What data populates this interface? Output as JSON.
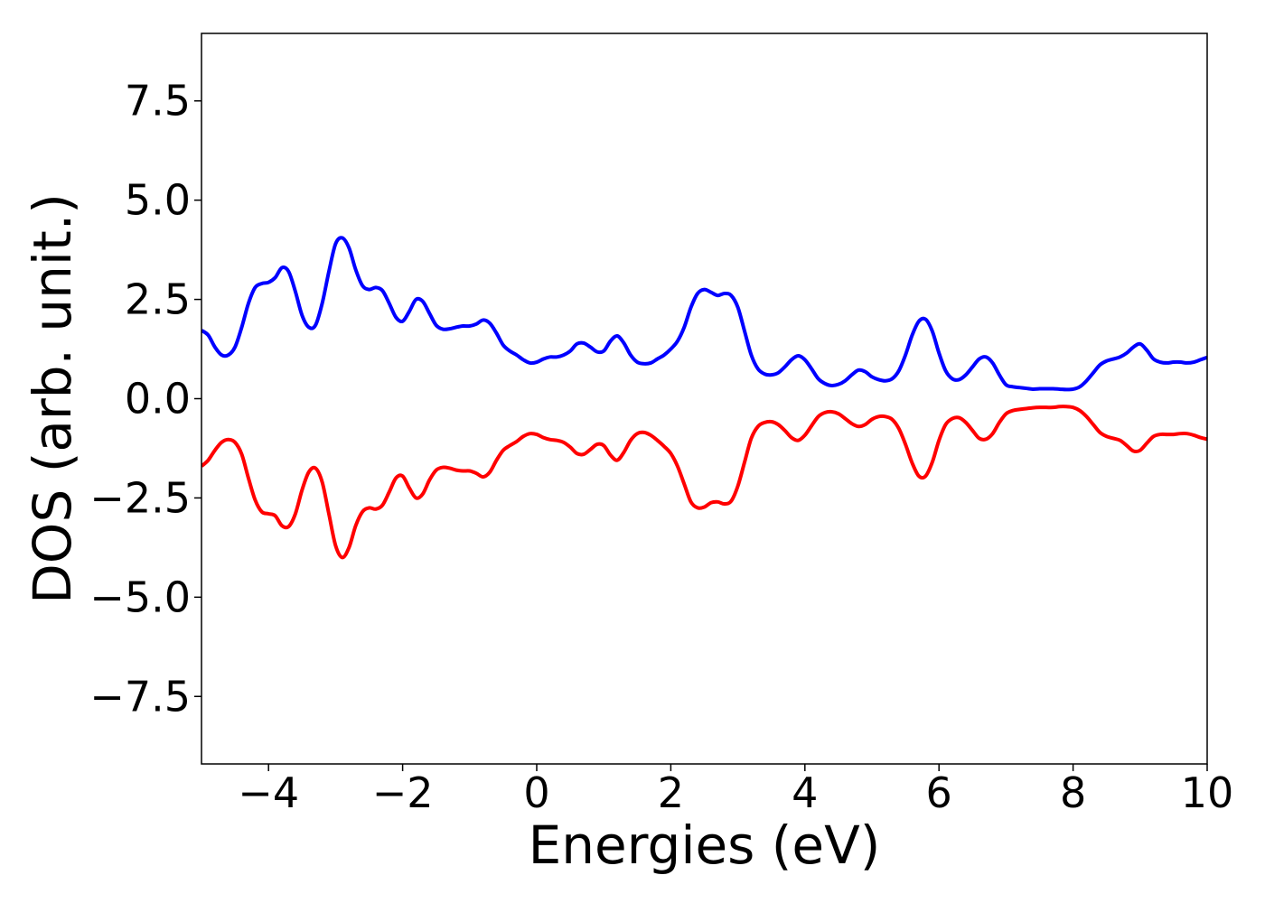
{
  "chart_data": {
    "type": "line",
    "title": "",
    "xlabel": "Energies (eV)",
    "ylabel": "DOS (arb. unit.)",
    "xlim": [
      -5,
      10
    ],
    "ylim": [
      -9.2,
      9.2
    ],
    "grid": false,
    "legend": "none",
    "x_ticks": [
      -4,
      -2,
      0,
      2,
      4,
      6,
      8,
      10
    ],
    "x_tick_labels": [
      "−4",
      "−2",
      "0",
      "2",
      "4",
      "6",
      "8",
      "10"
    ],
    "y_ticks": [
      -7.5,
      -5.0,
      -2.5,
      0.0,
      2.5,
      5.0,
      7.5
    ],
    "y_tick_labels": [
      "−7.5",
      "−5.0",
      "−2.5",
      "0.0",
      "2.5",
      "5.0",
      "7.5"
    ],
    "series": [
      {
        "color": "#0000ff",
        "points": [
          [
            -5.0,
            1.72
          ],
          [
            -4.9,
            1.6
          ],
          [
            -4.8,
            1.3
          ],
          [
            -4.7,
            1.1
          ],
          [
            -4.6,
            1.1
          ],
          [
            -4.5,
            1.3
          ],
          [
            -4.4,
            1.8
          ],
          [
            -4.3,
            2.4
          ],
          [
            -4.2,
            2.8
          ],
          [
            -4.1,
            2.9
          ],
          [
            -4.0,
            2.93
          ],
          [
            -3.9,
            3.05
          ],
          [
            -3.8,
            3.3
          ],
          [
            -3.7,
            3.2
          ],
          [
            -3.6,
            2.7
          ],
          [
            -3.5,
            2.1
          ],
          [
            -3.4,
            1.8
          ],
          [
            -3.3,
            1.85
          ],
          [
            -3.2,
            2.4
          ],
          [
            -3.1,
            3.2
          ],
          [
            -3.0,
            3.9
          ],
          [
            -2.9,
            4.05
          ],
          [
            -2.8,
            3.8
          ],
          [
            -2.7,
            3.25
          ],
          [
            -2.6,
            2.85
          ],
          [
            -2.5,
            2.75
          ],
          [
            -2.4,
            2.8
          ],
          [
            -2.3,
            2.72
          ],
          [
            -2.2,
            2.4
          ],
          [
            -2.1,
            2.05
          ],
          [
            -2.0,
            1.95
          ],
          [
            -1.9,
            2.2
          ],
          [
            -1.8,
            2.5
          ],
          [
            -1.7,
            2.45
          ],
          [
            -1.6,
            2.15
          ],
          [
            -1.5,
            1.85
          ],
          [
            -1.4,
            1.75
          ],
          [
            -1.3,
            1.76
          ],
          [
            -1.2,
            1.8
          ],
          [
            -1.1,
            1.83
          ],
          [
            -1.0,
            1.83
          ],
          [
            -0.9,
            1.88
          ],
          [
            -0.8,
            1.98
          ],
          [
            -0.7,
            1.9
          ],
          [
            -0.6,
            1.65
          ],
          [
            -0.5,
            1.35
          ],
          [
            -0.4,
            1.2
          ],
          [
            -0.3,
            1.1
          ],
          [
            -0.2,
            0.98
          ],
          [
            -0.1,
            0.9
          ],
          [
            0.0,
            0.92
          ],
          [
            0.1,
            1.0
          ],
          [
            0.2,
            1.05
          ],
          [
            0.3,
            1.05
          ],
          [
            0.4,
            1.1
          ],
          [
            0.5,
            1.2
          ],
          [
            0.6,
            1.38
          ],
          [
            0.7,
            1.4
          ],
          [
            0.8,
            1.3
          ],
          [
            0.9,
            1.18
          ],
          [
            1.0,
            1.2
          ],
          [
            1.1,
            1.45
          ],
          [
            1.2,
            1.58
          ],
          [
            1.3,
            1.4
          ],
          [
            1.4,
            1.1
          ],
          [
            1.5,
            0.92
          ],
          [
            1.6,
            0.88
          ],
          [
            1.7,
            0.9
          ],
          [
            1.8,
            1.0
          ],
          [
            1.9,
            1.1
          ],
          [
            2.0,
            1.25
          ],
          [
            2.1,
            1.45
          ],
          [
            2.2,
            1.8
          ],
          [
            2.3,
            2.3
          ],
          [
            2.4,
            2.65
          ],
          [
            2.5,
            2.75
          ],
          [
            2.6,
            2.68
          ],
          [
            2.7,
            2.6
          ],
          [
            2.8,
            2.65
          ],
          [
            2.9,
            2.6
          ],
          [
            3.0,
            2.3
          ],
          [
            3.1,
            1.7
          ],
          [
            3.2,
            1.1
          ],
          [
            3.3,
            0.75
          ],
          [
            3.4,
            0.62
          ],
          [
            3.5,
            0.6
          ],
          [
            3.6,
            0.65
          ],
          [
            3.7,
            0.8
          ],
          [
            3.8,
            0.98
          ],
          [
            3.9,
            1.08
          ],
          [
            4.0,
            0.98
          ],
          [
            4.1,
            0.75
          ],
          [
            4.2,
            0.5
          ],
          [
            4.3,
            0.38
          ],
          [
            4.4,
            0.33
          ],
          [
            4.5,
            0.36
          ],
          [
            4.6,
            0.45
          ],
          [
            4.7,
            0.6
          ],
          [
            4.8,
            0.72
          ],
          [
            4.9,
            0.68
          ],
          [
            5.0,
            0.55
          ],
          [
            5.1,
            0.48
          ],
          [
            5.2,
            0.45
          ],
          [
            5.3,
            0.5
          ],
          [
            5.4,
            0.7
          ],
          [
            5.5,
            1.1
          ],
          [
            5.6,
            1.6
          ],
          [
            5.7,
            1.95
          ],
          [
            5.8,
            2.0
          ],
          [
            5.9,
            1.7
          ],
          [
            6.0,
            1.15
          ],
          [
            6.1,
            0.7
          ],
          [
            6.2,
            0.5
          ],
          [
            6.3,
            0.48
          ],
          [
            6.4,
            0.6
          ],
          [
            6.5,
            0.8
          ],
          [
            6.6,
            1.0
          ],
          [
            6.7,
            1.05
          ],
          [
            6.8,
            0.9
          ],
          [
            6.9,
            0.6
          ],
          [
            7.0,
            0.35
          ],
          [
            7.1,
            0.3
          ],
          [
            7.2,
            0.28
          ],
          [
            7.3,
            0.26
          ],
          [
            7.4,
            0.24
          ],
          [
            7.5,
            0.25
          ],
          [
            7.6,
            0.25
          ],
          [
            7.7,
            0.25
          ],
          [
            7.8,
            0.24
          ],
          [
            7.9,
            0.23
          ],
          [
            8.0,
            0.24
          ],
          [
            8.1,
            0.3
          ],
          [
            8.2,
            0.45
          ],
          [
            8.3,
            0.65
          ],
          [
            8.4,
            0.85
          ],
          [
            8.5,
            0.95
          ],
          [
            8.6,
            1.0
          ],
          [
            8.7,
            1.05
          ],
          [
            8.8,
            1.15
          ],
          [
            8.9,
            1.3
          ],
          [
            9.0,
            1.38
          ],
          [
            9.1,
            1.22
          ],
          [
            9.2,
            1.0
          ],
          [
            9.3,
            0.92
          ],
          [
            9.4,
            0.9
          ],
          [
            9.5,
            0.92
          ],
          [
            9.6,
            0.92
          ],
          [
            9.7,
            0.9
          ],
          [
            9.8,
            0.92
          ],
          [
            9.9,
            0.98
          ],
          [
            10.0,
            1.04
          ]
        ]
      },
      {
        "color": "#ff0000",
        "points": [
          [
            -5.0,
            -1.7
          ],
          [
            -4.9,
            -1.55
          ],
          [
            -4.8,
            -1.3
          ],
          [
            -4.7,
            -1.1
          ],
          [
            -4.6,
            -1.03
          ],
          [
            -4.5,
            -1.1
          ],
          [
            -4.4,
            -1.4
          ],
          [
            -4.3,
            -2.0
          ],
          [
            -4.2,
            -2.55
          ],
          [
            -4.1,
            -2.85
          ],
          [
            -4.0,
            -2.9
          ],
          [
            -3.9,
            -2.95
          ],
          [
            -3.8,
            -3.2
          ],
          [
            -3.7,
            -3.22
          ],
          [
            -3.6,
            -2.9
          ],
          [
            -3.5,
            -2.3
          ],
          [
            -3.4,
            -1.85
          ],
          [
            -3.3,
            -1.75
          ],
          [
            -3.2,
            -2.1
          ],
          [
            -3.1,
            -2.9
          ],
          [
            -3.0,
            -3.7
          ],
          [
            -2.9,
            -4.0
          ],
          [
            -2.8,
            -3.75
          ],
          [
            -2.7,
            -3.2
          ],
          [
            -2.6,
            -2.85
          ],
          [
            -2.5,
            -2.75
          ],
          [
            -2.4,
            -2.78
          ],
          [
            -2.3,
            -2.68
          ],
          [
            -2.2,
            -2.35
          ],
          [
            -2.1,
            -2.0
          ],
          [
            -2.0,
            -1.95
          ],
          [
            -1.9,
            -2.25
          ],
          [
            -1.8,
            -2.5
          ],
          [
            -1.7,
            -2.4
          ],
          [
            -1.6,
            -2.05
          ],
          [
            -1.5,
            -1.8
          ],
          [
            -1.4,
            -1.73
          ],
          [
            -1.3,
            -1.75
          ],
          [
            -1.2,
            -1.8
          ],
          [
            -1.1,
            -1.82
          ],
          [
            -1.0,
            -1.82
          ],
          [
            -0.9,
            -1.88
          ],
          [
            -0.8,
            -1.97
          ],
          [
            -0.7,
            -1.85
          ],
          [
            -0.6,
            -1.55
          ],
          [
            -0.5,
            -1.3
          ],
          [
            -0.4,
            -1.18
          ],
          [
            -0.3,
            -1.08
          ],
          [
            -0.2,
            -0.95
          ],
          [
            -0.1,
            -0.88
          ],
          [
            0.0,
            -0.9
          ],
          [
            0.1,
            -0.98
          ],
          [
            0.2,
            -1.03
          ],
          [
            0.3,
            -1.05
          ],
          [
            0.4,
            -1.1
          ],
          [
            0.5,
            -1.22
          ],
          [
            0.6,
            -1.38
          ],
          [
            0.7,
            -1.4
          ],
          [
            0.8,
            -1.28
          ],
          [
            0.9,
            -1.15
          ],
          [
            1.0,
            -1.18
          ],
          [
            1.1,
            -1.42
          ],
          [
            1.2,
            -1.55
          ],
          [
            1.3,
            -1.35
          ],
          [
            1.4,
            -1.05
          ],
          [
            1.5,
            -0.88
          ],
          [
            1.6,
            -0.85
          ],
          [
            1.7,
            -0.92
          ],
          [
            1.8,
            -1.05
          ],
          [
            1.9,
            -1.2
          ],
          [
            2.0,
            -1.38
          ],
          [
            2.1,
            -1.7
          ],
          [
            2.2,
            -2.15
          ],
          [
            2.3,
            -2.6
          ],
          [
            2.4,
            -2.75
          ],
          [
            2.5,
            -2.73
          ],
          [
            2.6,
            -2.62
          ],
          [
            2.7,
            -2.6
          ],
          [
            2.8,
            -2.65
          ],
          [
            2.9,
            -2.58
          ],
          [
            3.0,
            -2.2
          ],
          [
            3.1,
            -1.6
          ],
          [
            3.2,
            -1.0
          ],
          [
            3.3,
            -0.7
          ],
          [
            3.4,
            -0.6
          ],
          [
            3.5,
            -0.58
          ],
          [
            3.6,
            -0.65
          ],
          [
            3.7,
            -0.8
          ],
          [
            3.8,
            -0.98
          ],
          [
            3.9,
            -1.05
          ],
          [
            4.0,
            -0.92
          ],
          [
            4.1,
            -0.68
          ],
          [
            4.2,
            -0.45
          ],
          [
            4.3,
            -0.35
          ],
          [
            4.4,
            -0.33
          ],
          [
            4.5,
            -0.38
          ],
          [
            4.6,
            -0.5
          ],
          [
            4.7,
            -0.63
          ],
          [
            4.8,
            -0.7
          ],
          [
            4.9,
            -0.65
          ],
          [
            5.0,
            -0.52
          ],
          [
            5.1,
            -0.45
          ],
          [
            5.2,
            -0.45
          ],
          [
            5.3,
            -0.52
          ],
          [
            5.4,
            -0.75
          ],
          [
            5.5,
            -1.15
          ],
          [
            5.6,
            -1.62
          ],
          [
            5.7,
            -1.95
          ],
          [
            5.8,
            -1.95
          ],
          [
            5.9,
            -1.6
          ],
          [
            6.0,
            -1.05
          ],
          [
            6.1,
            -0.65
          ],
          [
            6.2,
            -0.5
          ],
          [
            6.3,
            -0.48
          ],
          [
            6.4,
            -0.6
          ],
          [
            6.5,
            -0.8
          ],
          [
            6.6,
            -1.0
          ],
          [
            6.7,
            -1.02
          ],
          [
            6.8,
            -0.88
          ],
          [
            6.9,
            -0.6
          ],
          [
            7.0,
            -0.38
          ],
          [
            7.1,
            -0.3
          ],
          [
            7.2,
            -0.27
          ],
          [
            7.3,
            -0.25
          ],
          [
            7.4,
            -0.23
          ],
          [
            7.5,
            -0.22
          ],
          [
            7.6,
            -0.22
          ],
          [
            7.7,
            -0.22
          ],
          [
            7.8,
            -0.2
          ],
          [
            7.9,
            -0.2
          ],
          [
            8.0,
            -0.22
          ],
          [
            8.1,
            -0.3
          ],
          [
            8.2,
            -0.45
          ],
          [
            8.3,
            -0.65
          ],
          [
            8.4,
            -0.85
          ],
          [
            8.5,
            -0.95
          ],
          [
            8.6,
            -1.0
          ],
          [
            8.7,
            -1.05
          ],
          [
            8.8,
            -1.18
          ],
          [
            8.9,
            -1.32
          ],
          [
            9.0,
            -1.3
          ],
          [
            9.1,
            -1.12
          ],
          [
            9.2,
            -0.95
          ],
          [
            9.3,
            -0.9
          ],
          [
            9.4,
            -0.9
          ],
          [
            9.5,
            -0.9
          ],
          [
            9.6,
            -0.88
          ],
          [
            9.7,
            -0.88
          ],
          [
            9.8,
            -0.92
          ],
          [
            9.9,
            -0.98
          ],
          [
            10.0,
            -1.02
          ]
        ]
      }
    ]
  }
}
